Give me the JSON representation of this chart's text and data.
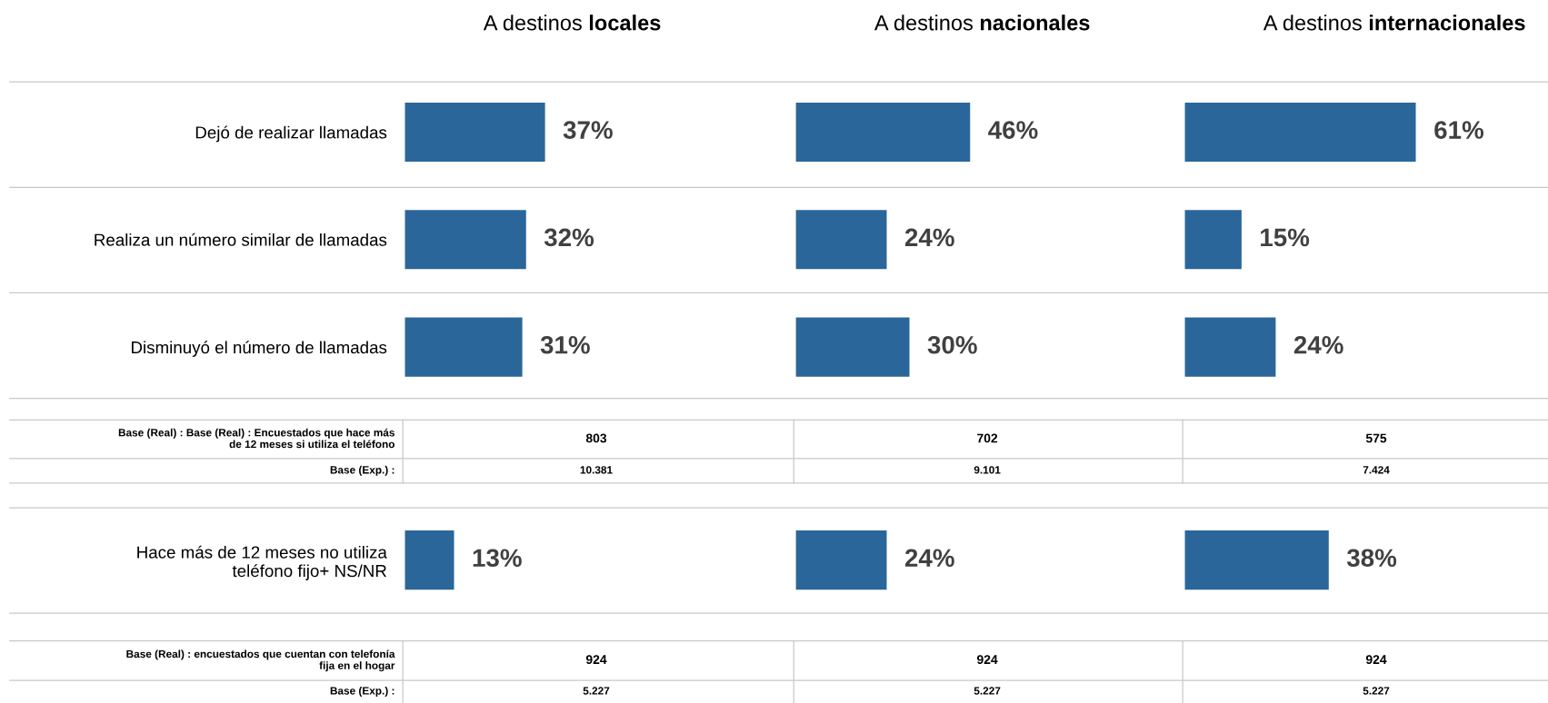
{
  "chart_data": [
    {
      "type": "bar",
      "orientation": "horizontal",
      "title": "A destinos locales",
      "categories": [
        "Dejó de realizar llamadas",
        "Realiza un número similar de llamadas",
        "Disminuyó el número de llamadas"
      ],
      "values": [
        37,
        32,
        31
      ],
      "value_labels": [
        "37%",
        "32%",
        "31%"
      ],
      "color": "#2a6699",
      "tick_labels": "y",
      "annotations": [
        "Base (Real) : Base (Real) : Encuestados que hace más\nde 12 meses si utiliza el teléfono",
        "803",
        "Base (Exp.) :",
        "10.381"
      ]
    },
    {
      "type": "bar",
      "orientation": "horizontal",
      "title": "A destinos nacionales",
      "categories": [
        null,
        null,
        null
      ],
      "values": [
        46,
        24,
        30
      ],
      "value_labels": [
        "46%",
        "24%",
        "30%"
      ],
      "color": "#2a6699",
      "tick_labels": false,
      "annotations": [
        "702",
        "9.101"
      ]
    },
    {
      "type": "bar",
      "orientation": "horizontal",
      "title": "A destinos internacionales",
      "categories": [
        null,
        null,
        null
      ],
      "values": [
        61,
        15,
        24
      ],
      "value_labels": [
        "61%",
        "15%",
        "24%"
      ],
      "color": "#2a6699",
      "tick_labels": false,
      "annotations": [
        "575",
        "7.424"
      ]
    },
    {
      "type": "bar",
      "orientation": "horizontal",
      "categories": [
        "Hace más de 12 meses no utiliza\nteléfono fijo+ NS/NR"
      ],
      "values": [
        13
      ],
      "value_labels": [
        "13%"
      ],
      "color": "#2a6699",
      "tick_labels": "y",
      "annotations": [
        "Base (Real) : encuestados que cuentan con telefonía\nfija en el hogar",
        "924",
        "Base (Exp.) :",
        "5.227"
      ]
    },
    {
      "type": "bar",
      "orientation": "horizontal",
      "categories": [
        null
      ],
      "values": [
        24
      ],
      "value_labels": [
        "24%"
      ],
      "color": "#2a6699",
      "tick_labels": false,
      "annotations": [
        "924",
        "5.227"
      ]
    },
    {
      "type": "bar",
      "orientation": "horizontal",
      "categories": [
        null
      ],
      "values": [
        38
      ],
      "value_labels": [
        "38%"
      ],
      "color": "#2a6699",
      "tick_labels": false,
      "annotations": [
        "924",
        "5.227"
      ]
    }
  ]
}
